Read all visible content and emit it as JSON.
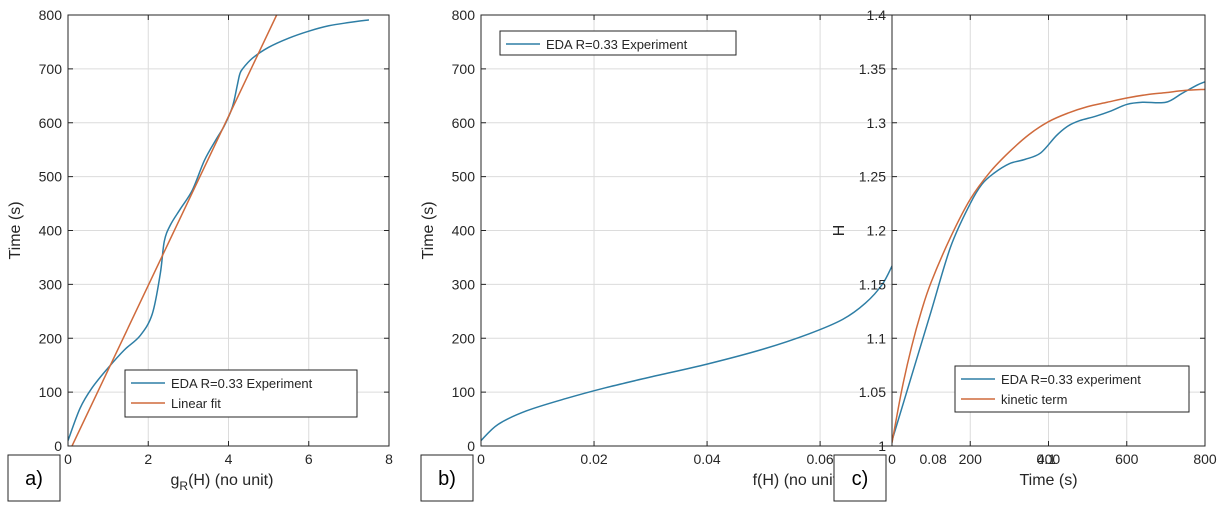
{
  "colors": {
    "experiment": "#2e7ea5",
    "fit": "#cf6a3c",
    "grid": "#dcdcdc",
    "axis": "#262626"
  },
  "chart_data": [
    {
      "type": "line",
      "panel_label": "a)",
      "title": "",
      "xlabel_main": "g",
      "xlabel_sub": "R",
      "xlabel_rest": "(H)  (no unit)",
      "ylabel": "Time (s)",
      "xlim": [
        0,
        8
      ],
      "ylim": [
        0,
        800
      ],
      "xticks": [
        0,
        2,
        4,
        6,
        8
      ],
      "xtick_labels": [
        "0",
        "2",
        "4",
        "6",
        "8"
      ],
      "yticks": [
        0,
        100,
        200,
        300,
        400,
        500,
        600,
        700,
        800
      ],
      "ytick_labels": [
        "0",
        "100",
        "200",
        "300",
        "400",
        "500",
        "600",
        "700",
        "800"
      ],
      "grid": true,
      "legend_position": "bottom-right",
      "series": [
        {
          "name": "EDA R=0.33 Experiment",
          "color_key": "experiment",
          "x": [
            0,
            0.3,
            0.6,
            1.0,
            1.4,
            1.8,
            2.1,
            2.3,
            2.4,
            2.55,
            2.8,
            3.1,
            3.4,
            3.7,
            3.9,
            4.1,
            4.22,
            4.28,
            4.35,
            4.6,
            5.0,
            5.5,
            6.0,
            6.5,
            7.0,
            7.5
          ],
          "y": [
            10,
            70,
            108,
            145,
            178,
            205,
            245,
            320,
            380,
            410,
            440,
            475,
            530,
            570,
            595,
            630,
            670,
            690,
            700,
            720,
            740,
            757,
            770,
            780,
            786,
            791
          ]
        },
        {
          "name": "Linear fit",
          "color_key": "fit",
          "x": [
            0.1,
            5.2
          ],
          "y": [
            0,
            800
          ]
        }
      ]
    },
    {
      "type": "line",
      "panel_label": "b)",
      "title": "",
      "xlabel": "f(H)  (no unit)",
      "ylabel": "Time (s)",
      "xlim": [
        0,
        0.112
      ],
      "ylim": [
        0,
        800
      ],
      "xticks": [
        0,
        0.02,
        0.04,
        0.06,
        0.08,
        0.1
      ],
      "xtick_labels": [
        "0",
        "0.02",
        "0.04",
        "0.06",
        "0.08",
        "0.1"
      ],
      "yticks": [
        0,
        100,
        200,
        300,
        400,
        500,
        600,
        700,
        800
      ],
      "ytick_labels": [
        "0",
        "100",
        "200",
        "300",
        "400",
        "500",
        "600",
        "700",
        "800"
      ],
      "grid": true,
      "legend_position": "top-left",
      "series": [
        {
          "name": "EDA R=0.33 Experiment",
          "color_key": "experiment",
          "x": [
            0,
            0.003,
            0.008,
            0.015,
            0.022,
            0.03,
            0.04,
            0.05,
            0.058,
            0.064,
            0.068,
            0.071,
            0.073,
            0.074,
            0.075,
            0.0765,
            0.079,
            0.083,
            0.087,
            0.09,
            0.093,
            0.096,
            0.099,
            0.1005,
            0.101,
            0.102,
            0.105,
            0.109,
            0.112
          ],
          "y": [
            10,
            40,
            65,
            88,
            108,
            128,
            152,
            180,
            208,
            235,
            265,
            300,
            340,
            360,
            380,
            400,
            420,
            445,
            470,
            505,
            555,
            590,
            620,
            650,
            690,
            710,
            725,
            755,
            785
          ]
        }
      ]
    },
    {
      "type": "line",
      "panel_label": "c)",
      "title": "",
      "xlabel": "Time (s)",
      "ylabel": "H",
      "xlim": [
        0,
        800
      ],
      "ylim": [
        1,
        1.4
      ],
      "xticks": [
        0,
        200,
        400,
        600,
        800
      ],
      "xtick_labels": [
        "0",
        "200",
        "400",
        "600",
        "800"
      ],
      "yticks": [
        1,
        1.05,
        1.1,
        1.15,
        1.2,
        1.25,
        1.3,
        1.35,
        1.4
      ],
      "ytick_labels": [
        "1",
        "1.05",
        "1.1",
        "1.15",
        "1.2",
        "1.25",
        "1.3",
        "1.35",
        "1.4"
      ],
      "grid": true,
      "legend_position": "bottom-right",
      "series": [
        {
          "name": "EDA R=0.33 experiment",
          "color_key": "experiment",
          "x": [
            0,
            50,
            100,
            150,
            200,
            230,
            260,
            300,
            340,
            380,
            420,
            450,
            480,
            520,
            560,
            600,
            640,
            700,
            740,
            780,
            800
          ],
          "y": [
            1.005,
            1.065,
            1.125,
            1.185,
            1.225,
            1.243,
            1.253,
            1.262,
            1.266,
            1.272,
            1.288,
            1.297,
            1.302,
            1.306,
            1.311,
            1.317,
            1.319,
            1.319,
            1.327,
            1.335,
            1.338
          ]
        },
        {
          "name": "kinetic term",
          "color_key": "fit",
          "x": [
            0,
            25,
            50,
            75,
            100,
            150,
            200,
            250,
            300,
            350,
            400,
            450,
            500,
            550,
            600,
            650,
            700,
            750,
            800
          ],
          "y": [
            1.003,
            1.052,
            1.092,
            1.125,
            1.152,
            1.194,
            1.229,
            1.254,
            1.273,
            1.289,
            1.301,
            1.309,
            1.315,
            1.319,
            1.323,
            1.326,
            1.328,
            1.33,
            1.331
          ]
        }
      ]
    }
  ]
}
